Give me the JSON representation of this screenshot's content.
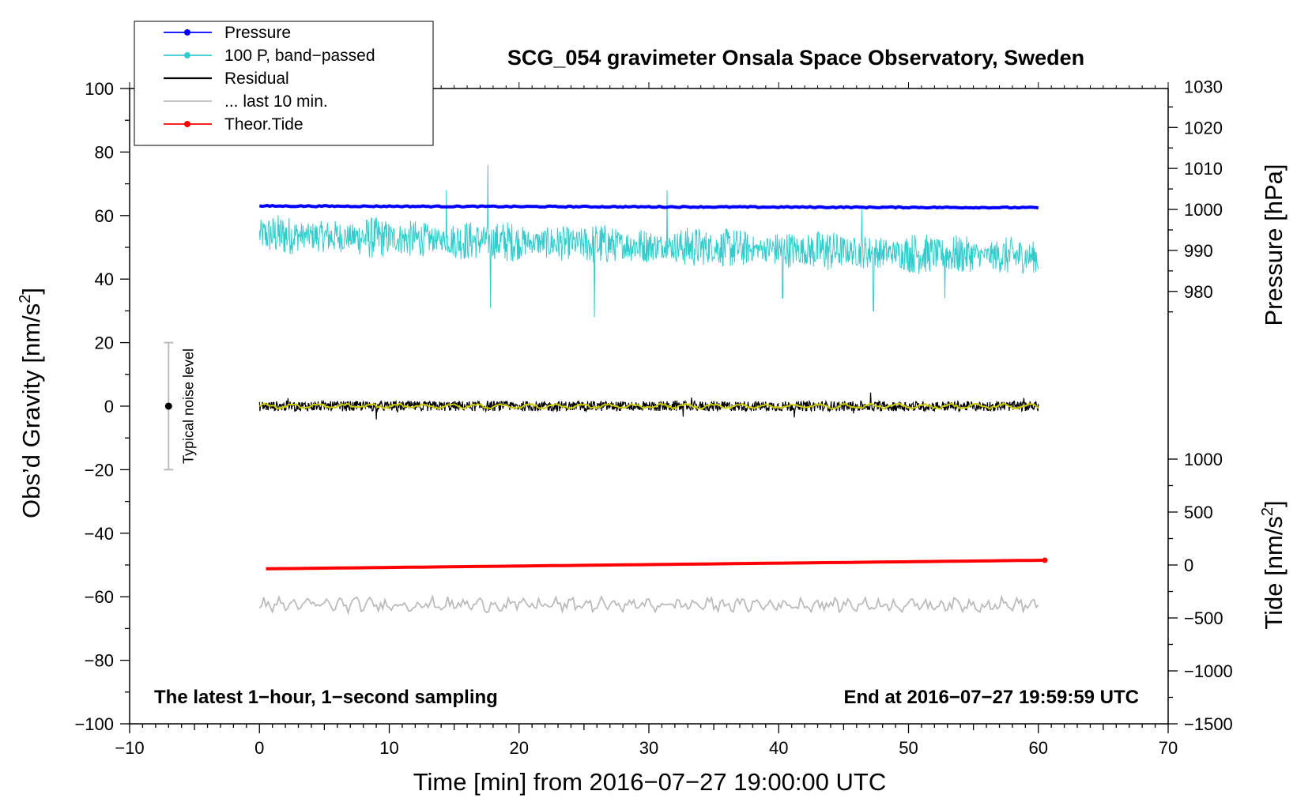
{
  "chart_data": {
    "type": "line",
    "title": "SCG_054 gravimeter Onsala Space Observatory, Sweden",
    "xlabel": "Time [min] from 2016−07−27 19:00:00 UTC",
    "ylabel_left": "Obs’d Gravity [nm/s",
    "ylabel_left_sup": "2",
    "ylabel_left_close": "]",
    "ylabel_pressure": "Pressure [hPa]",
    "ylabel_tide": "Tide [nm/s",
    "ylabel_tide_sup": "2",
    "ylabel_tide_close": "]",
    "xlim": [
      -10,
      70
    ],
    "ylim": [
      -100,
      100
    ],
    "x_ticks": [
      -10,
      0,
      10,
      20,
      30,
      40,
      50,
      60,
      70
    ],
    "x_tick_labels": [
      "−10",
      "0",
      "10",
      "20",
      "30",
      "40",
      "50",
      "60",
      "70"
    ],
    "y_ticks": [
      -100,
      -80,
      -60,
      -40,
      -20,
      0,
      20,
      40,
      60,
      80,
      100
    ],
    "y_tick_labels": [
      "−100",
      "−80",
      "−60",
      "−40",
      "−20",
      "0",
      "20",
      "40",
      "60",
      "80",
      "100"
    ],
    "pressure_ticks": [
      980,
      990,
      1000,
      1010,
      1020,
      1030
    ],
    "pressure_tick_labels": [
      "980",
      "990",
      "1000",
      "1010",
      "1020",
      "1030"
    ],
    "pressure_axis_map": {
      "hPa_at_gravity_zero": 952.0,
      "hPa_per_nm_s2": 0.775
    },
    "tide_ticks": [
      -1500,
      -1000,
      -500,
      0,
      500,
      1000
    ],
    "tide_tick_labels": [
      "−1500",
      "−1000",
      "−500",
      "0",
      "500",
      "1000"
    ],
    "tide_axis_map": {
      "tide_at_gravity_minus100": -1500,
      "tide_at_gravity_minus50": 0
    },
    "legend": [
      {
        "label": "Pressure",
        "color": "#0000ff",
        "marker": true
      },
      {
        "label": "100 P, band−passed",
        "color": "#33cccc",
        "marker": true
      },
      {
        "label": "Residual",
        "color": "#000000",
        "marker": false
      },
      {
        "label": "... last 10 min.",
        "color": "#bbbbbb",
        "marker": false
      },
      {
        "label": "Theor.Tide",
        "color": "#ff0000",
        "marker": true
      }
    ],
    "series": [
      {
        "name": "Pressure",
        "color": "#0000ff",
        "x_range": [
          0,
          60
        ],
        "y_start": 63.0,
        "y_end": 62.5
      },
      {
        "name": "100 P, band−passed",
        "color": "#33cccc",
        "x_range": [
          0,
          60
        ],
        "y_center_start": 54,
        "y_center_end": 47,
        "noise_amplitude": 5,
        "spikes": [
          [
            17.6,
            76
          ],
          [
            17.8,
            31
          ],
          [
            14.4,
            68
          ],
          [
            25.8,
            28
          ],
          [
            31.4,
            68
          ],
          [
            40.3,
            34
          ],
          [
            47.3,
            30
          ],
          [
            52.8,
            34
          ],
          [
            22.0,
            55
          ],
          [
            46.4,
            62
          ]
        ]
      },
      {
        "name": "Residual",
        "color": "#000000",
        "x_range": [
          0,
          60
        ],
        "y_center": 0,
        "noise_amplitude": 1.6
      },
      {
        "name": "Residual (smoothed)",
        "color": "#cccc00",
        "x_range": [
          0,
          60
        ],
        "y_center": 0,
        "noise_amplitude": 0.7
      },
      {
        "name": "... last 10 min.",
        "color": "#bbbbbb",
        "x_range": [
          0,
          60
        ],
        "y_center": -62.5,
        "noise_amplitude": 1.5
      },
      {
        "name": "Theor.Tide",
        "color": "#ff0000",
        "x_range": [
          0.5,
          60.5
        ],
        "y_start": -51.2,
        "y_end": -48.5
      }
    ],
    "noise_bar": {
      "x": -7,
      "y_center": 0,
      "y_low": -20,
      "y_high": 20,
      "label": "Typical noise level"
    },
    "annotation_left": "The latest 1−hour, 1−second sampling",
    "annotation_right": "End at 2016−07−27 19:59:59 UTC"
  }
}
